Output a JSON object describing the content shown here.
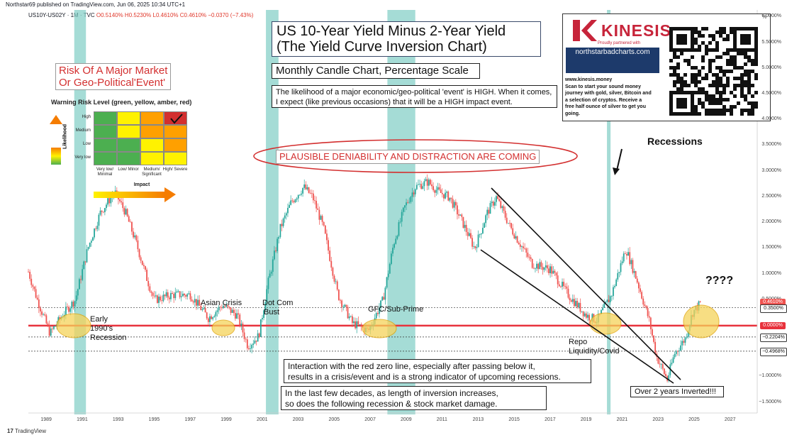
{
  "header": {
    "publisher": "Northstar69 published on TradingView.com, Jun 06, 2025 10:34 UTC+1",
    "symbol": "US10Y-US02Y · 1M · TVC",
    "ohlc": "O0.5140% H0.5230% L0.4610% C0.4610% −0.0370 (−7.43%)"
  },
  "title_box": {
    "line1": "US 10-Year Yield Minus 2-Year Yield",
    "line2": "(The Yield Curve Inversion Chart)"
  },
  "subtitle": "Monthly Candle Chart, Percentage Scale",
  "likelihood_text": "The likelihood of a major economic/geo-political 'event' is HIGH. When it comes, I expect (like previous occasions) that it will be a HIGH impact event.",
  "risk_title": {
    "line1": "Risk Of A Major Market",
    "line2": "Or Geo-Political'Event'"
  },
  "matrix": {
    "title": "Warning Risk Level (green, yellow, amber, red)",
    "likelihood_label": "Likelihood",
    "impact_label": "Impact",
    "rows": [
      "High",
      "Medium",
      "Low",
      "Very low"
    ],
    "cols": [
      "Very low/ Minimal",
      "Low/ Minor",
      "Medium/ Significant",
      "High/ Severe"
    ],
    "colors": [
      [
        "#4caf50",
        "#fff200",
        "#ffa000",
        "#d32f2f"
      ],
      [
        "#4caf50",
        "#fff200",
        "#ffa000",
        "#ffa000"
      ],
      [
        "#4caf50",
        "#4caf50",
        "#fff200",
        "#ffa000"
      ],
      [
        "#4caf50",
        "#4caf50",
        "#fff200",
        "#fff200"
      ]
    ]
  },
  "plausible": "PLAUSIBLE DENIABILITY AND DISTRACTION ARE COMING",
  "kinesis": {
    "name": "KINESIS",
    "partnered": "Proudly partnered with",
    "site": "northstarbadcharts.com",
    "stars": "★ ★ ★ ★ ★ ☑",
    "text_lines": [
      "www.kinesis.money",
      "Scan to start your sound money",
      "journey with gold, silver, Bitcoin and",
      "a selection of cryptos. Receive a",
      "free half ounce of silver to get you",
      "going."
    ]
  },
  "annotations": {
    "recessions": "Recessions",
    "early1990": [
      "Early",
      "1990's",
      "Recession"
    ],
    "asian_crisis": "Asian Crisis",
    "dotcom": [
      "Dot Com",
      "Bust"
    ],
    "gfc": "GFC/Sub-Prime",
    "repo": [
      "Repo",
      "Liquidity/Covid"
    ],
    "question": "????",
    "interaction": [
      "Interaction with the red zero line, especially after passing below it,",
      "results in a crisis/event and is a strong indicator of upcoming recessions."
    ],
    "inversion": [
      "In the last few decades, as length of inversion increases,",
      "so does the following recession & stock market damage."
    ],
    "over2": "Over 2 years Inverted!!!"
  },
  "footer": {
    "tradingview": "TradingView"
  },
  "colors": {
    "up": "#26a69a",
    "down": "#ef5350",
    "zero_line": "#e8323c",
    "recession_band": "#7fcdc4",
    "highlight": "#f5d35a"
  },
  "chart_data": {
    "type": "candlestick",
    "x_unit": "year",
    "y_unit": "%",
    "xlim": [
      1988,
      2028.5
    ],
    "ylim": [
      -1.7,
      6.2
    ],
    "x_ticks": [
      "1989",
      "1991",
      "1993",
      "1995",
      "1997",
      "1999",
      "2001",
      "2003",
      "2005",
      "2007",
      "2009",
      "2011",
      "2013",
      "2015",
      "2017",
      "2019",
      "2021",
      "2023",
      "2025",
      "2027"
    ],
    "y_ticks": [
      "6.0000%",
      "5.5000%",
      "5.0000%",
      "4.5000%",
      "4.0000%",
      "3.5000%",
      "3.0000%",
      "2.5000%",
      "2.0000%",
      "1.5000%",
      "1.0000%",
      "0.5000%",
      "0.0000%",
      "−1.0000%",
      "−1.5000%"
    ],
    "y_tick_values": [
      6.0,
      5.5,
      5.0,
      4.5,
      4.0,
      3.5,
      3.0,
      2.5,
      2.0,
      1.5,
      1.0,
      0.5,
      0.0,
      -1.0,
      -1.5
    ],
    "price_tags": [
      {
        "label": "0.4610%",
        "value": 0.461,
        "color": "#ef5350"
      },
      {
        "label": "0.3500%",
        "value": 0.35,
        "color": "#ffffff"
      },
      {
        "label": "0.0000%",
        "value": 0.0,
        "color": "#e8323c"
      },
      {
        "label": "−0.2204%",
        "value": -0.2204,
        "color": "#ffffff"
      },
      {
        "label": "−0.4968%",
        "value": -0.4968,
        "color": "#ffffff"
      }
    ],
    "dotted_levels": [
      0.35,
      -0.2204,
      -0.4968
    ],
    "recession_bands": [
      [
        1990.55,
        1991.2
      ],
      [
        2001.2,
        2001.9
      ],
      [
        2007.95,
        2009.5
      ],
      [
        2020.15,
        2020.35
      ]
    ],
    "series_path": [
      [
        1988.0,
        1.05
      ],
      [
        1988.5,
        0.5
      ],
      [
        1989.2,
        -0.15
      ],
      [
        1989.6,
        0.05
      ],
      [
        1990.0,
        0.25
      ],
      [
        1990.6,
        0.5
      ],
      [
        1991.3,
        1.5
      ],
      [
        1992.0,
        2.2
      ],
      [
        1992.8,
        2.6
      ],
      [
        1993.4,
        2.2
      ],
      [
        1994.0,
        1.6
      ],
      [
        1994.6,
        0.9
      ],
      [
        1995.0,
        0.5
      ],
      [
        1996.0,
        0.6
      ],
      [
        1997.0,
        0.6
      ],
      [
        1998.0,
        0.15
      ],
      [
        1998.8,
        0.4
      ],
      [
        1999.6,
        0.2
      ],
      [
        2000.2,
        -0.4
      ],
      [
        2000.8,
        -0.2
      ],
      [
        2001.3,
        0.8
      ],
      [
        2002.0,
        1.9
      ],
      [
        2002.6,
        2.4
      ],
      [
        2003.3,
        2.7
      ],
      [
        2003.8,
        2.5
      ],
      [
        2004.4,
        1.9
      ],
      [
        2005.2,
        0.6
      ],
      [
        2006.0,
        0.05
      ],
      [
        2006.9,
        -0.1
      ],
      [
        2007.7,
        0.5
      ],
      [
        2008.3,
        1.6
      ],
      [
        2008.9,
        2.3
      ],
      [
        2009.5,
        2.7
      ],
      [
        2010.2,
        2.8
      ],
      [
        2010.8,
        2.6
      ],
      [
        2011.4,
        2.5
      ],
      [
        2012.0,
        2.1
      ],
      [
        2012.8,
        1.5
      ],
      [
        2013.5,
        2.2
      ],
      [
        2014.0,
        2.5
      ],
      [
        2014.8,
        1.9
      ],
      [
        2016.0,
        1.2
      ],
      [
        2017.0,
        1.1
      ],
      [
        2018.0,
        0.6
      ],
      [
        2019.0,
        0.2
      ],
      [
        2019.6,
        0.1
      ],
      [
        2020.4,
        0.6
      ],
      [
        2021.2,
        1.5
      ],
      [
        2021.8,
        0.9
      ],
      [
        2022.5,
        0.1
      ],
      [
        2022.9,
        -0.6
      ],
      [
        2023.5,
        -1.05
      ],
      [
        2023.9,
        -0.55
      ],
      [
        2024.5,
        -0.25
      ],
      [
        2024.9,
        0.25
      ],
      [
        2025.4,
        0.461
      ]
    ]
  }
}
